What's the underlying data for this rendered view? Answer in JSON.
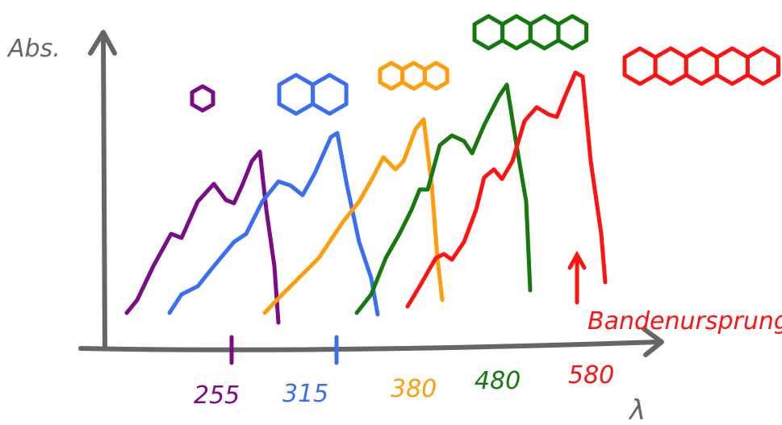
{
  "axis": {
    "y_label": "Abs.",
    "x_label": "λ"
  },
  "annotation": "Bandenursprung",
  "spectra": [
    {
      "label": "255",
      "color": "#7a0c86"
    },
    {
      "label": "315",
      "color": "#3b6ff2"
    },
    {
      "label": "380",
      "color": "#ff9d0a"
    },
    {
      "label": "480",
      "color": "#17780f"
    },
    {
      "label": "580",
      "color": "#ff1212"
    }
  ]
}
